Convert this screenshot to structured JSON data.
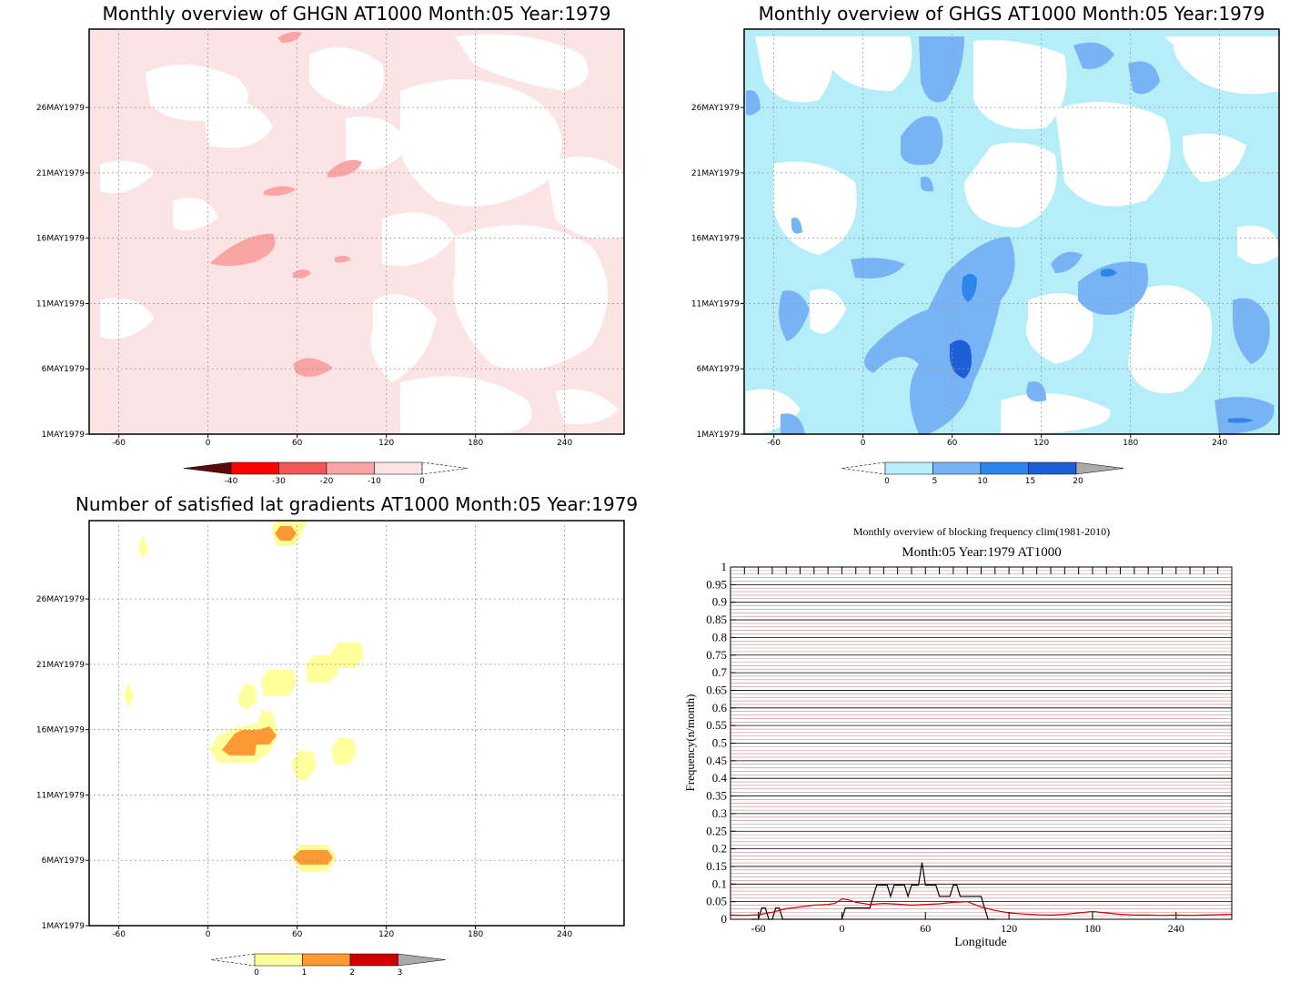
{
  "panels": {
    "ghgn": {
      "title": "Monthly overview of GHGN AT1000 Month:05 Year:1979",
      "x_ticks": [
        "-60",
        "0",
        "60",
        "120",
        "180",
        "240"
      ],
      "y_ticks": [
        "1MAY1979",
        "6MAY1979",
        "11MAY1979",
        "16MAY1979",
        "21MAY1979",
        "26MAY1979"
      ],
      "colorbar": {
        "labels": [
          "-40",
          "-30",
          "-20",
          "-10",
          "0"
        ],
        "colors": [
          "#5a0a0a",
          "#ff0000",
          "#f25555",
          "#f9a5a5",
          "#fde4e4"
        ]
      }
    },
    "ghgs": {
      "title": "Monthly overview of GHGS AT1000 Month:05 Year:1979",
      "x_ticks": [
        "-60",
        "0",
        "60",
        "120",
        "180",
        "240"
      ],
      "y_ticks": [
        "1MAY1979",
        "6MAY1979",
        "11MAY1979",
        "16MAY1979",
        "21MAY1979",
        "26MAY1979"
      ],
      "colorbar": {
        "labels": [
          "0",
          "5",
          "10",
          "15",
          "20"
        ],
        "colors": [
          "#b5eef8",
          "#78b4f5",
          "#2f86ea",
          "#1c5fd6",
          "#aaaaaa"
        ]
      }
    },
    "satisfied": {
      "title": "Number of satisfied lat gradients AT1000 Month:05 Year:1979",
      "x_ticks": [
        "-60",
        "0",
        "60",
        "120",
        "180",
        "240"
      ],
      "y_ticks": [
        "1MAY1979",
        "6MAY1979",
        "11MAY1979",
        "16MAY1979",
        "21MAY1979",
        "26MAY1979"
      ],
      "colorbar": {
        "labels": [
          "0",
          "1",
          "2",
          "3"
        ],
        "colors": [
          "#ffff9c",
          "#ff9933",
          "#cc0000",
          "#aaaaaa"
        ]
      }
    }
  },
  "chart_data": {
    "type": "line",
    "title": "Monthly overview of blocking frequency clim(1981-2010)",
    "subtitle": "Month:05 Year:1979  AT1000",
    "xlabel": "Longitude",
    "ylabel": "Frequency(n/month)",
    "x_ticks": [
      "-60",
      "0",
      "60",
      "120",
      "180",
      "240"
    ],
    "y_ticks": [
      "0",
      "0.05",
      "0.1",
      "0.15",
      "0.2",
      "0.25",
      "0.3",
      "0.35",
      "0.4",
      "0.45",
      "0.5",
      "0.55",
      "0.6",
      "0.65",
      "0.7",
      "0.75",
      "0.8",
      "0.85",
      "0.9",
      "0.95",
      "1"
    ],
    "xlim": [
      -80,
      280
    ],
    "ylim": [
      0,
      1
    ],
    "series": [
      {
        "color": "#000000",
        "x": [
          -65,
          -62.5,
          -60,
          -57.5,
          -55,
          -52.5,
          -50,
          -47.5,
          -45,
          -42.5,
          -40,
          -37.5,
          -35,
          -32.5,
          -30,
          -27.5,
          -25,
          -22.5,
          -20,
          -17.5,
          -15,
          -12.5,
          -10,
          -7.5,
          -5,
          -2.5,
          0,
          2.5,
          5,
          7.5,
          10,
          12.5,
          15,
          17.5,
          20,
          22.5,
          25,
          27.5,
          30,
          32.5,
          35,
          37.5,
          40,
          42.5,
          45,
          47.5,
          50,
          52.5,
          55,
          57.5,
          60,
          62.5,
          65,
          67.5,
          70,
          72.5,
          75,
          77.5,
          80,
          82.5,
          85,
          87.5,
          90,
          92.5,
          95,
          97.5,
          100,
          102.5,
          105,
          107.5,
          110
        ],
        "values": [
          0,
          0,
          0,
          0.032,
          0.032,
          0,
          0,
          0.032,
          0.032,
          0,
          0,
          0,
          0,
          0,
          0,
          0,
          0,
          0,
          0,
          0,
          0,
          0,
          0,
          0,
          0,
          0,
          0,
          0.032,
          0.032,
          0.032,
          0.032,
          0.032,
          0.032,
          0.032,
          0.032,
          0.065,
          0.097,
          0.097,
          0.097,
          0.097,
          0.065,
          0.097,
          0.097,
          0.097,
          0.097,
          0.065,
          0.097,
          0.097,
          0.097,
          0.161,
          0.097,
          0.097,
          0.097,
          0.097,
          0.065,
          0.065,
          0.065,
          0.065,
          0.097,
          0.097,
          0.065,
          0.065,
          0.065,
          0.065,
          0.065,
          0.065,
          0.065,
          0.032,
          0,
          0,
          0
        ]
      },
      {
        "color": "#cc0000",
        "x": [
          -80,
          -70,
          -60,
          -50,
          -40,
          -30,
          -20,
          -10,
          -5,
          0,
          5,
          10,
          20,
          30,
          40,
          50,
          60,
          70,
          80,
          90,
          100,
          110,
          120,
          130,
          140,
          150,
          160,
          170,
          180,
          190,
          200,
          210,
          220,
          230,
          240,
          250,
          260,
          270,
          280
        ],
        "values": [
          0.012,
          0.011,
          0.013,
          0.02,
          0.03,
          0.035,
          0.04,
          0.042,
          0.045,
          0.058,
          0.055,
          0.048,
          0.042,
          0.045,
          0.043,
          0.04,
          0.042,
          0.044,
          0.048,
          0.05,
          0.035,
          0.025,
          0.018,
          0.015,
          0.013,
          0.012,
          0.014,
          0.018,
          0.022,
          0.018,
          0.014,
          0.012,
          0.012,
          0.011,
          0.012,
          0.011,
          0.012,
          0.013,
          0.014
        ]
      }
    ]
  }
}
